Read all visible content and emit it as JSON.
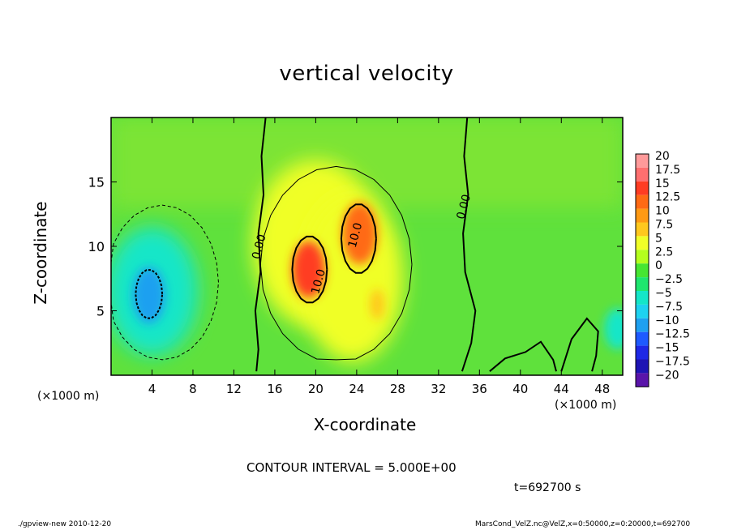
{
  "chart_data": {
    "type": "heatmap",
    "title": "vertical velocity",
    "xlabel": "X-coordinate",
    "ylabel": "Z-coordinate",
    "x_unit_label": "(×1000 m)",
    "x_ticks": [
      "4",
      "8",
      "12",
      "16",
      "20",
      "24",
      "28",
      "32",
      "36",
      "40",
      "44",
      "48"
    ],
    "x_tick_values": [
      4,
      8,
      12,
      16,
      20,
      24,
      28,
      32,
      36,
      40,
      44,
      48
    ],
    "xlim": [
      0,
      50
    ],
    "y_ticks": [
      "5",
      "10",
      "15"
    ],
    "y_tick_values": [
      5,
      10,
      15
    ],
    "ylim": [
      0,
      20
    ],
    "contour_interval_text": "CONTOUR INTERVAL = 5.000E+00",
    "contour_labels": [
      {
        "text": "0.00",
        "x": 14.8,
        "z": 9.9
      },
      {
        "text": "10.0",
        "x": 20.6,
        "z": 7.2
      },
      {
        "text": "10.0",
        "x": 24.2,
        "z": 10.8
      },
      {
        "text": "0.00",
        "x": 34.8,
        "z": 13.0
      }
    ],
    "colorbar": {
      "labels": [
        "20",
        "17.5",
        "15",
        "12.5",
        "10",
        "7.5",
        "5",
        "2.5",
        "0",
        "−2.5",
        "−5",
        "−7.5",
        "−10",
        "−12.5",
        "−15",
        "−17.5",
        "−20"
      ],
      "colors": [
        "#ff9a9a",
        "#ff6f6f",
        "#ff3c23",
        "#ff6a14",
        "#ff9a14",
        "#ffc81e",
        "#f0ff28",
        "#b4ff1e",
        "#46e632",
        "#1ee66e",
        "#14e6c8",
        "#1ed2f0",
        "#1ea0f0",
        "#1e5aff",
        "#1e28e6",
        "#1e14b4",
        "#5a14aa"
      ]
    },
    "field_blobs": [
      {
        "x": 20,
        "z": 10.2,
        "rx": 6.2,
        "rz": 6.5,
        "value": 4.5
      },
      {
        "x": 23.6,
        "z": 7.5,
        "rx": 5.0,
        "rz": 6.5,
        "value": 6
      },
      {
        "x": 19.3,
        "z": 8.2,
        "rx": 1.6,
        "rz": 2.2,
        "value": 15
      },
      {
        "x": 24.3,
        "z": 11.0,
        "rx": 1.7,
        "rz": 2.4,
        "value": 13
      },
      {
        "x": 26,
        "z": 5.5,
        "rx": 0.7,
        "rz": 1.2,
        "value": 8
      },
      {
        "x": 4,
        "z": 6.5,
        "rx": 4.5,
        "rz": 5,
        "value": -5
      },
      {
        "x": 3.7,
        "z": 6.2,
        "rx": 1.6,
        "rz": 2.2,
        "value": -9
      },
      {
        "x": 49.5,
        "z": 3.6,
        "rx": 1.3,
        "rz": 1.6,
        "value": -6
      }
    ],
    "grid": false
  },
  "timestamp_text": "t=692700 s",
  "footer_left": "./gpview-new  2010-12-20",
  "footer_right": "MarsCond_VelZ.nc@VelZ,x=0:50000,z=0:20000,t=692700"
}
